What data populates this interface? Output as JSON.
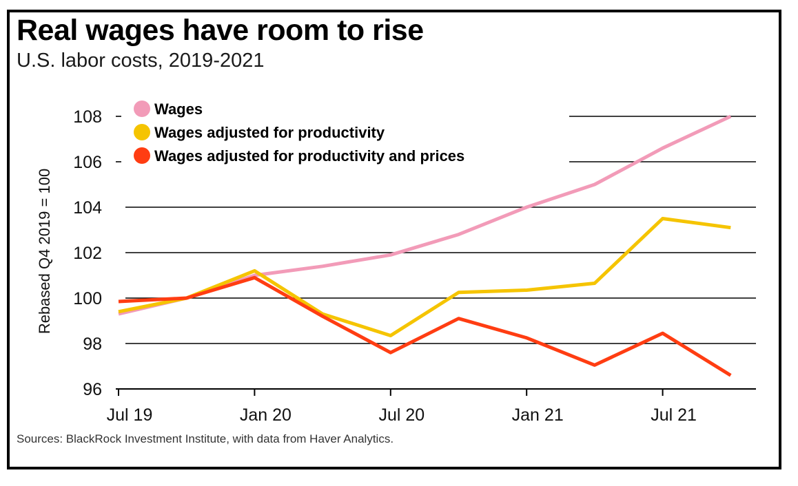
{
  "chart_data": {
    "type": "line",
    "title": "Real wages have room to rise",
    "subtitle": "U.S. labor costs, 2019-2021",
    "ylabel": "Rebased Q4 2019 = 100",
    "xlabel": "",
    "ylim": [
      96,
      108
    ],
    "yticks": [
      96,
      98,
      100,
      102,
      104,
      106,
      108
    ],
    "xticks": [
      {
        "label": "Jul 19",
        "x": 0
      },
      {
        "label": "Jan 20",
        "x": 2
      },
      {
        "label": "Jul 20",
        "x": 4
      },
      {
        "label": "Jan 21",
        "x": 6
      },
      {
        "label": "Jul 21",
        "x": 8
      }
    ],
    "x": [
      0,
      1,
      2,
      3,
      4,
      5,
      6,
      7,
      8,
      9
    ],
    "grid": "horizontal",
    "legend_position": "top-left",
    "series": [
      {
        "name": "Wages",
        "color": "#f29bb8",
        "values": [
          99.3,
          100.0,
          101.0,
          101.4,
          101.9,
          102.8,
          104.0,
          105.0,
          106.6,
          108.0
        ]
      },
      {
        "name": "Wages adjusted for productivity",
        "color": "#f5c400",
        "values": [
          99.4,
          100.0,
          101.2,
          99.3,
          98.35,
          100.25,
          100.35,
          100.65,
          103.5,
          103.1
        ]
      },
      {
        "name": "Wages adjusted for productivity and prices",
        "color": "#ff3d12",
        "values": [
          99.85,
          100.0,
          100.9,
          99.2,
          97.6,
          99.1,
          98.25,
          97.05,
          98.45,
          96.6
        ]
      }
    ],
    "source": "Sources: BlackRock Investment Institute, with data from Haver Analytics."
  }
}
